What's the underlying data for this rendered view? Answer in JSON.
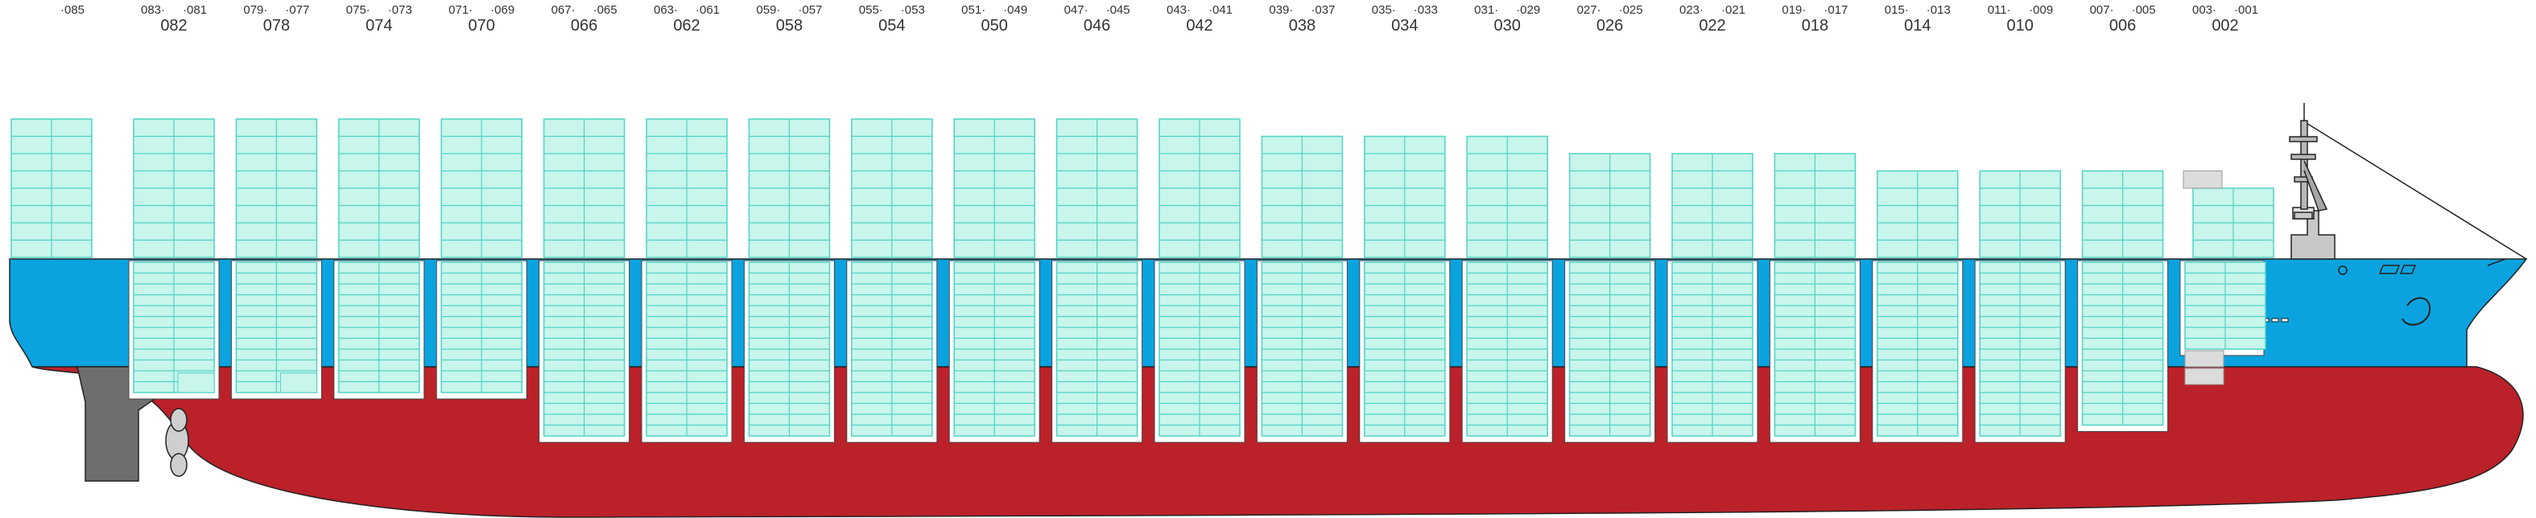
{
  "bays": [
    {
      "name": "082",
      "fore": "083",
      "aft": "081",
      "tier": 8,
      "hold": 12,
      "hfrac": 0.55,
      "split": 1
    },
    {
      "name": "078",
      "fore": "079",
      "aft": "077",
      "tier": 8,
      "hold": 12,
      "hfrac": 0.55,
      "split": 1
    },
    {
      "name": "074",
      "fore": "075",
      "aft": "073",
      "tier": 8,
      "hold": 12,
      "hfrac": 0.55
    },
    {
      "name": "070",
      "fore": "071",
      "aft": "069",
      "tier": 8,
      "hold": 12,
      "hfrac": 0.55
    },
    {
      "name": "066",
      "fore": "067",
      "aft": "065",
      "tier": 8,
      "hold": 16
    },
    {
      "name": "062",
      "fore": "063",
      "aft": "061",
      "tier": 8,
      "hold": 16
    },
    {
      "name": "058",
      "fore": "059",
      "aft": "057",
      "tier": 8,
      "hold": 16
    },
    {
      "name": "054",
      "fore": "055",
      "aft": "053",
      "tier": 8,
      "hold": 16
    },
    {
      "name": "050",
      "fore": "051",
      "aft": "049",
      "tier": 8,
      "hold": 16
    },
    {
      "name": "046",
      "fore": "047",
      "aft": "045",
      "tier": 8,
      "hold": 16
    },
    {
      "name": "042",
      "fore": "043",
      "aft": "041",
      "tier": 8,
      "hold": 16
    },
    {
      "name": "038",
      "fore": "039",
      "aft": "037",
      "tier": 7,
      "hold": 16
    },
    {
      "name": "034",
      "fore": "035",
      "aft": "033",
      "tier": 7,
      "hold": 16
    },
    {
      "name": "030",
      "fore": "031",
      "aft": "029",
      "tier": 7,
      "hold": 16
    },
    {
      "name": "026",
      "fore": "027",
      "aft": "025",
      "tier": 6,
      "hold": 16
    },
    {
      "name": "022",
      "fore": "023",
      "aft": "021",
      "tier": 6,
      "hold": 16
    },
    {
      "name": "018",
      "fore": "019",
      "aft": "017",
      "tier": 6,
      "hold": 16
    },
    {
      "name": "014",
      "fore": "015",
      "aft": "013",
      "tier": 5,
      "hold": 16
    },
    {
      "name": "010",
      "fore": "011",
      "aft": "009",
      "tier": 5,
      "hold": 16
    },
    {
      "name": "006",
      "fore": "007",
      "aft": "005",
      "tier": 5,
      "hold": 15
    },
    {
      "name": "002",
      "fore": "003",
      "aft": "001",
      "tier": 4,
      "hold": 8,
      "narrow": 1
    }
  ],
  "stern_bay": {
    "fore": "085",
    "tier": 8,
    "hold": 0
  },
  "colors": {
    "hull_red": "#bb2129",
    "hull_blue": "#0aa3df",
    "container_fill": "#c8f5ec",
    "container_stroke": "#4fd3c4",
    "hatch_fill": "#ffffff",
    "grey": "#808080"
  }
}
